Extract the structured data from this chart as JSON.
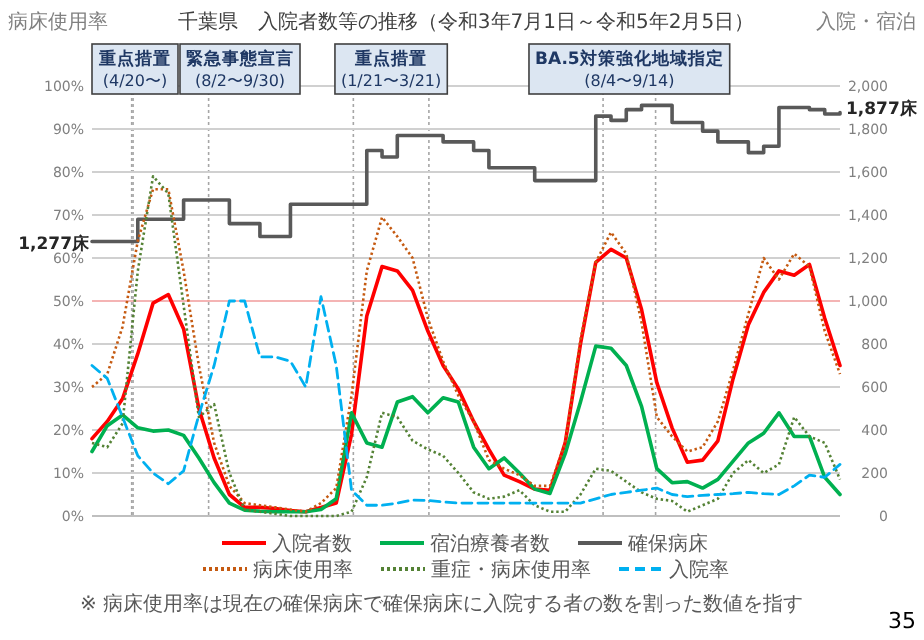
{
  "chart_data": {
    "type": "line",
    "title": "千葉県　入院者数等の推移（令和3年7月1日～令和5年2月5日）",
    "ylabel": "病床使用率",
    "y2label": "入院・宿泊",
    "categories": [
      null,
      null,
      null,
      null,
      null,
      null,
      null,
      null,
      null,
      null,
      null,
      null,
      null,
      null,
      null,
      null,
      null,
      null,
      null,
      null,
      null,
      null,
      null,
      null,
      null,
      null,
      null,
      null,
      null,
      null,
      null,
      null,
      null,
      null,
      null,
      null,
      null,
      null,
      null,
      null,
      null,
      null,
      null,
      null,
      null,
      null,
      null,
      null,
      null,
      null
    ],
    "ylim": [
      0,
      100
    ],
    "yticks": [
      {
        "value": 0,
        "label": "0%"
      },
      {
        "value": 10,
        "label": "10%"
      },
      {
        "value": 20,
        "label": "20%"
      },
      {
        "value": 30,
        "label": "30%"
      },
      {
        "value": 40,
        "label": "40%"
      },
      {
        "value": 50,
        "label": "50%"
      },
      {
        "value": 60,
        "label": "60%"
      },
      {
        "value": 70,
        "label": "70%"
      },
      {
        "value": 80,
        "label": "80%"
      },
      {
        "value": 90,
        "label": "90%"
      },
      {
        "value": 100,
        "label": "100%"
      }
    ],
    "y2lim": [
      0,
      2000
    ],
    "y2ticks": [
      0,
      200,
      400,
      600,
      800,
      {
        "value": 1000,
        "label": "1,000"
      },
      {
        "value": 1200,
        "label": "1,200"
      },
      {
        "value": 1400,
        "label": "1,400"
      },
      {
        "value": 1600,
        "label": "1,600"
      },
      {
        "value": 1800,
        "label": "1,800"
      },
      {
        "value": 2000,
        "label": "2,000"
      }
    ],
    "grid": true,
    "legend": "bottom",
    "series": [
      {
        "name": "入院者数",
        "color": "#ff0000",
        "axis": "y2",
        "line_style": "solid",
        "values": [
          360,
          440,
          545,
          755,
          990,
          1030,
          870,
          500,
          270,
          100,
          40,
          40,
          35,
          25,
          20,
          40,
          60,
          380,
          930,
          1160,
          1140,
          1050,
          860,
          700,
          590,
          440,
          310,
          190,
          160,
          125,
          120,
          340,
          800,
          1180,
          1240,
          1200,
          960,
          620,
          410,
          250,
          260,
          350,
          640,
          890,
          1040,
          1140,
          1120,
          1170,
          920,
          700
        ]
      },
      {
        "name": "宿泊療養者数",
        "color": "#00b050",
        "axis": "y2",
        "line_style": "solid",
        "values": [
          300,
          420,
          470,
          410,
          395,
          400,
          375,
          270,
          155,
          60,
          27,
          22,
          20,
          20,
          20,
          30,
          80,
          480,
          340,
          320,
          530,
          555,
          480,
          550,
          530,
          320,
          220,
          270,
          200,
          125,
          105,
          290,
          530,
          790,
          780,
          700,
          510,
          220,
          155,
          160,
          130,
          170,
          255,
          340,
          385,
          480,
          370,
          370,
          180,
          100
        ]
      },
      {
        "name": "確保病床",
        "color": "#595959",
        "axis": "y2",
        "type": "step",
        "line_style": "solid",
        "values": [
          1277,
          1277,
          1277,
          1380,
          1380,
          1380,
          1470,
          1470,
          1470,
          1360,
          1360,
          1300,
          1300,
          1450,
          1450,
          1450,
          1450,
          1450,
          1700,
          1670,
          1770,
          1770,
          1770,
          1740,
          1740,
          1700,
          1620,
          1620,
          1620,
          1560,
          1560,
          1560,
          1560,
          1860,
          1840,
          1890,
          1910,
          1910,
          1830,
          1830,
          1790,
          1740,
          1740,
          1690,
          1720,
          1900,
          1900,
          1890,
          1870,
          1877
        ]
      },
      {
        "name": "病床使用率",
        "color": "#c55a11",
        "line_style": "dotted",
        "values": [
          30,
          33,
          44,
          64,
          76,
          76,
          57,
          35,
          17,
          7,
          3,
          2.5,
          2,
          1.5,
          1,
          3,
          6.5,
          28,
          57,
          69.5,
          65,
          60,
          46,
          36,
          28,
          22,
          13,
          11,
          9.5,
          7,
          7,
          17,
          41,
          59,
          66,
          61,
          45,
          23,
          18.5,
          15,
          16,
          22,
          34,
          47,
          60,
          55,
          61,
          58,
          43,
          33
        ]
      },
      {
        "name": "重症・病床使用率",
        "color": "#548235",
        "line_style": "dotted",
        "values": [
          17,
          16,
          21.5,
          57,
          79,
          75,
          49,
          23,
          26,
          10,
          1.5,
          1,
          0.5,
          0,
          0,
          0,
          0,
          1,
          9,
          24,
          23,
          17.5,
          15.5,
          14,
          10,
          5.5,
          4,
          4.5,
          6,
          2.5,
          1,
          1,
          5,
          11,
          10.5,
          8,
          5.5,
          4,
          3.5,
          1,
          2.5,
          4,
          10,
          13,
          10,
          12,
          23,
          18.5,
          17,
          8.5
        ]
      },
      {
        "name": "入院率",
        "color": "#00b0f0",
        "line_style": "dashed",
        "values": [
          35,
          32,
          23,
          14,
          10,
          7.5,
          10.5,
          23.5,
          35,
          50,
          50,
          37,
          37,
          36,
          30,
          51,
          35,
          6,
          2.5,
          2.5,
          3,
          3.7,
          3.6,
          3.3,
          3,
          3,
          3,
          3,
          3,
          3,
          3,
          3,
          3,
          4,
          5,
          5.5,
          6,
          6.5,
          5,
          4.5,
          4.8,
          5,
          5.2,
          5.5,
          5.2,
          5,
          7,
          9.5,
          9,
          12
        ]
      }
    ],
    "ref_lines": [
      {
        "axis": "y",
        "value": 50,
        "color": "#f4b4b4"
      }
    ],
    "annotations": [
      "重点措置\n(4/20〜)",
      "緊急事態宣言\n(8/2〜9/30)",
      "重点措置\n(1/21〜3/21)",
      "BA.5対策強化地域指定\n(8/4〜9/14)",
      "1,277床",
      "1,877床",
      "※ 病床使用率は現在の確保病床で確保病床に入院する者の数を割った数値を指す",
      "35"
    ]
  }
}
